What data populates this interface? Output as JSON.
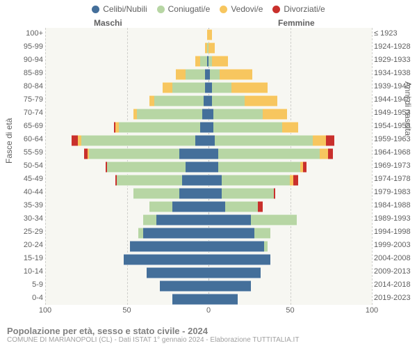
{
  "legend": {
    "celibi": "Celibi/Nubili",
    "coniugati": "Coniugati/e",
    "vedovi": "Vedovi/e",
    "divorziati": "Divorziati/e"
  },
  "colors": {
    "celibi": "#446f9a",
    "coniugati": "#b7d6a4",
    "vedovi": "#f7c65f",
    "divorziati": "#c9302c",
    "plot_bg": "#f7f7f2",
    "grid": "#d0d0cc"
  },
  "headers": {
    "male": "Maschi",
    "female": "Femmine"
  },
  "axis": {
    "y_left_title": "Fasce di età",
    "y_right_title": "Anni di nascita",
    "x_max": 100,
    "x_ticks": [
      100,
      50,
      0,
      50,
      100
    ]
  },
  "footer": {
    "title": "Popolazione per età, sesso e stato civile - 2024",
    "sub": "COMUNE DI MARIANOPOLI (CL) - Dati ISTAT 1° gennaio 2024 - Elaborazione TUTTITALIA.IT"
  },
  "rows": [
    {
      "age": "100+",
      "birth": "≤ 1923",
      "m": {
        "cel": 0,
        "con": 0,
        "ved": 1,
        "div": 0
      },
      "f": {
        "cel": 0,
        "con": 0,
        "ved": 2,
        "div": 0
      }
    },
    {
      "age": "95-99",
      "birth": "1924-1928",
      "m": {
        "cel": 0,
        "con": 1,
        "ved": 1,
        "div": 0
      },
      "f": {
        "cel": 0,
        "con": 0,
        "ved": 4,
        "div": 0
      }
    },
    {
      "age": "90-94",
      "birth": "1929-1933",
      "m": {
        "cel": 1,
        "con": 4,
        "ved": 3,
        "div": 0
      },
      "f": {
        "cel": 0,
        "con": 2,
        "ved": 10,
        "div": 0
      }
    },
    {
      "age": "85-89",
      "birth": "1934-1938",
      "m": {
        "cel": 2,
        "con": 12,
        "ved": 6,
        "div": 0
      },
      "f": {
        "cel": 1,
        "con": 6,
        "ved": 20,
        "div": 0
      }
    },
    {
      "age": "80-84",
      "birth": "1939-1943",
      "m": {
        "cel": 2,
        "con": 20,
        "ved": 6,
        "div": 0
      },
      "f": {
        "cel": 2,
        "con": 12,
        "ved": 22,
        "div": 0
      }
    },
    {
      "age": "75-79",
      "birth": "1944-1948",
      "m": {
        "cel": 3,
        "con": 30,
        "ved": 3,
        "div": 0
      },
      "f": {
        "cel": 2,
        "con": 20,
        "ved": 20,
        "div": 0
      }
    },
    {
      "age": "70-74",
      "birth": "1949-1953",
      "m": {
        "cel": 4,
        "con": 40,
        "ved": 2,
        "div": 0
      },
      "f": {
        "cel": 3,
        "con": 30,
        "ved": 15,
        "div": 0
      }
    },
    {
      "age": "65-69",
      "birth": "1954-1958",
      "m": {
        "cel": 5,
        "con": 50,
        "ved": 2,
        "div": 1
      },
      "f": {
        "cel": 3,
        "con": 42,
        "ved": 10,
        "div": 0
      }
    },
    {
      "age": "60-64",
      "birth": "1959-1963",
      "m": {
        "cel": 8,
        "con": 70,
        "ved": 2,
        "div": 4
      },
      "f": {
        "cel": 4,
        "con": 60,
        "ved": 8,
        "div": 5
      }
    },
    {
      "age": "55-59",
      "birth": "1964-1968",
      "m": {
        "cel": 18,
        "con": 55,
        "ved": 1,
        "div": 2
      },
      "f": {
        "cel": 6,
        "con": 62,
        "ved": 5,
        "div": 3
      }
    },
    {
      "age": "50-54",
      "birth": "1969-1973",
      "m": {
        "cel": 14,
        "con": 48,
        "ved": 0,
        "div": 1
      },
      "f": {
        "cel": 6,
        "con": 50,
        "ved": 2,
        "div": 2
      }
    },
    {
      "age": "45-49",
      "birth": "1974-1978",
      "m": {
        "cel": 16,
        "con": 40,
        "ved": 0,
        "div": 1
      },
      "f": {
        "cel": 8,
        "con": 42,
        "ved": 2,
        "div": 3
      }
    },
    {
      "age": "40-44",
      "birth": "1979-1983",
      "m": {
        "cel": 18,
        "con": 28,
        "ved": 0,
        "div": 0
      },
      "f": {
        "cel": 8,
        "con": 32,
        "ved": 0,
        "div": 1
      }
    },
    {
      "age": "35-39",
      "birth": "1984-1988",
      "m": {
        "cel": 22,
        "con": 14,
        "ved": 0,
        "div": 0
      },
      "f": {
        "cel": 10,
        "con": 20,
        "ved": 0,
        "div": 3
      }
    },
    {
      "age": "30-34",
      "birth": "1989-1993",
      "m": {
        "cel": 32,
        "con": 8,
        "ved": 0,
        "div": 0
      },
      "f": {
        "cel": 26,
        "con": 28,
        "ved": 0,
        "div": 0
      }
    },
    {
      "age": "25-29",
      "birth": "1994-1998",
      "m": {
        "cel": 40,
        "con": 3,
        "ved": 0,
        "div": 0
      },
      "f": {
        "cel": 28,
        "con": 10,
        "ved": 0,
        "div": 0
      }
    },
    {
      "age": "20-24",
      "birth": "1999-2003",
      "m": {
        "cel": 48,
        "con": 0,
        "ved": 0,
        "div": 0
      },
      "f": {
        "cel": 34,
        "con": 2,
        "ved": 0,
        "div": 0
      }
    },
    {
      "age": "15-19",
      "birth": "2004-2008",
      "m": {
        "cel": 52,
        "con": 0,
        "ved": 0,
        "div": 0
      },
      "f": {
        "cel": 38,
        "con": 0,
        "ved": 0,
        "div": 0
      }
    },
    {
      "age": "10-14",
      "birth": "2009-2013",
      "m": {
        "cel": 38,
        "con": 0,
        "ved": 0,
        "div": 0
      },
      "f": {
        "cel": 32,
        "con": 0,
        "ved": 0,
        "div": 0
      }
    },
    {
      "age": "5-9",
      "birth": "2014-2018",
      "m": {
        "cel": 30,
        "con": 0,
        "ved": 0,
        "div": 0
      },
      "f": {
        "cel": 26,
        "con": 0,
        "ved": 0,
        "div": 0
      }
    },
    {
      "age": "0-4",
      "birth": "2019-2023",
      "m": {
        "cel": 22,
        "con": 0,
        "ved": 0,
        "div": 0
      },
      "f": {
        "cel": 18,
        "con": 0,
        "ved": 0,
        "div": 0
      }
    }
  ]
}
